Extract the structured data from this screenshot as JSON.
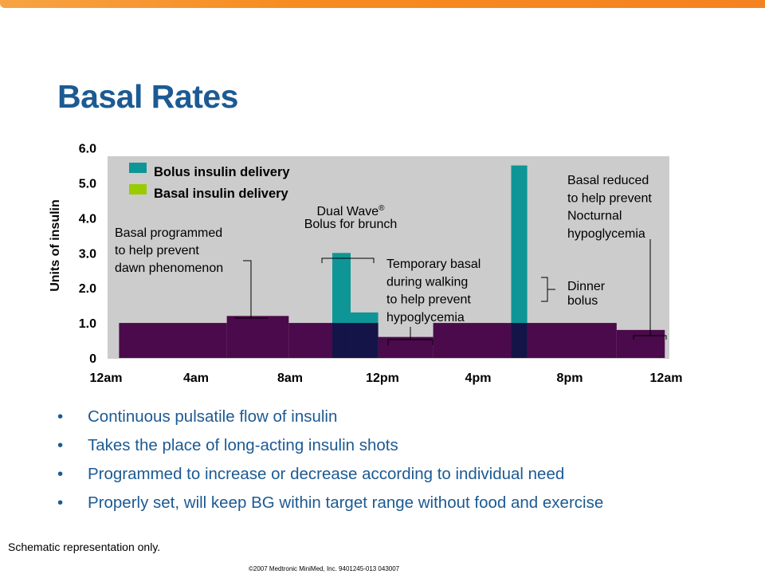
{
  "slide": {
    "title": "Basal Rates",
    "bullet_marker": "•",
    "bullets": [
      "Continuous pulsatile flow of insulin",
      "Takes the place of long-acting insulin shots",
      "Programmed to increase or decrease according to individual need",
      "Properly set, will keep BG within target range without food and exercise"
    ],
    "footnote": "Schematic representation only.",
    "copyright": "©2007 Medtronic MiniMed, Inc. 9401245-013 043007"
  },
  "colors": {
    "title": "#1c5a93",
    "accent_bar": "#f68b1f",
    "plot_background": "#cccccc",
    "bolus": "#0e9696",
    "basal_legend": "#99cc00",
    "basal": "#4b0a4b",
    "overlap": "#141448"
  },
  "chart_data": {
    "type": "bar",
    "ylabel": "Units of insulin",
    "ylim": [
      0,
      6
    ],
    "y_ticks": [
      "0",
      "1.0",
      "2.0",
      "3.0",
      "4.0",
      "5.0",
      "6.0"
    ],
    "x_ticks": [
      "12am",
      "4am",
      "8am",
      "12pm",
      "4pm",
      "8pm",
      "12am"
    ],
    "xlim_hours": [
      0,
      24.5
    ],
    "legend": [
      {
        "label": "Bolus insulin delivery",
        "color": "#0e9696"
      },
      {
        "label": "Basal insulin delivery",
        "color": "#99cc00"
      }
    ],
    "series": [
      {
        "name": "Basal insulin delivery",
        "segments": [
          {
            "start": 0.5,
            "end": 5.2,
            "value": 1.0
          },
          {
            "start": 5.2,
            "end": 7.9,
            "value": 1.2
          },
          {
            "start": 7.9,
            "end": 11.8,
            "value": 1.0
          },
          {
            "start": 11.8,
            "end": 14.2,
            "value": 0.6
          },
          {
            "start": 14.2,
            "end": 22.2,
            "value": 1.0
          },
          {
            "start": 22.2,
            "end": 24.3,
            "value": 0.8
          }
        ]
      },
      {
        "name": "Bolus insulin delivery",
        "bars": [
          {
            "start": 9.8,
            "end": 10.6,
            "value": 3.0
          },
          {
            "start": 10.6,
            "end": 11.8,
            "value": 1.3
          },
          {
            "start": 17.6,
            "end": 18.3,
            "value": 5.5
          }
        ]
      }
    ],
    "annotations": [
      {
        "name": "annotation-basal-programmed",
        "lines": [
          "Basal programmed",
          "to help prevent",
          "dawn phenomenon"
        ],
        "bracket": "dawn"
      },
      {
        "name": "annotation-dual-wave",
        "lines": [
          "Dual Wave",
          "Bolus for brunch"
        ],
        "superscript": "®",
        "bracket": "dual"
      },
      {
        "name": "annotation-temporary-basal",
        "lines": [
          "Temporary basal",
          "during walking",
          "to help prevent",
          "hypoglycemia"
        ],
        "bracket": "temp"
      },
      {
        "name": "annotation-basal-reduced",
        "lines": [
          "Basal reduced",
          "to help prevent",
          "Nocturnal",
          "hypoglycemia"
        ],
        "bracket": "night"
      },
      {
        "name": "annotation-dinner-bolus",
        "lines": [
          "Dinner",
          "bolus"
        ],
        "bracket": "dinner"
      }
    ]
  }
}
